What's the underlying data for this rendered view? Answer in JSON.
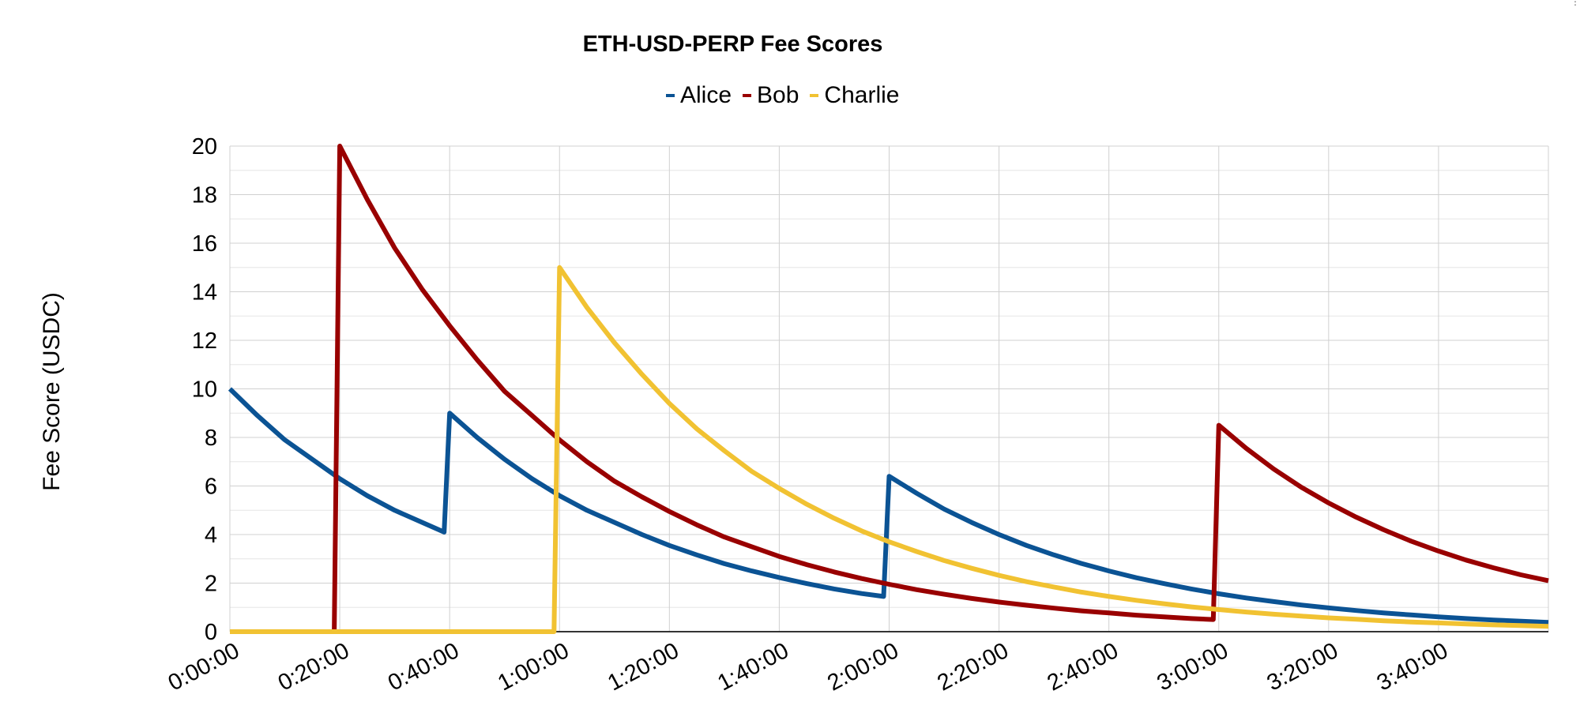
{
  "chart_data": {
    "type": "line",
    "title": "ETH-USD-PERP Fee Scores",
    "xlabel": "",
    "ylabel": "Fee Score (USDC)",
    "x_unit": "minutes",
    "xlim": [
      0,
      240
    ],
    "ylim": [
      0,
      20
    ],
    "x_ticks": [
      "0:00:00",
      "0:20:00",
      "0:40:00",
      "1:00:00",
      "1:20:00",
      "1:40:00",
      "2:00:00",
      "2:20:00",
      "2:40:00",
      "3:00:00",
      "3:20:00",
      "3:40:00"
    ],
    "y_ticks": [
      "0",
      "2",
      "4",
      "6",
      "8",
      "10",
      "12",
      "14",
      "16",
      "18",
      "20"
    ],
    "grid": true,
    "legend_position": "top",
    "series": [
      {
        "name": "Alice",
        "color": "#0b5394",
        "points": [
          [
            0,
            10
          ],
          [
            5,
            8.9
          ],
          [
            10,
            7.9
          ],
          [
            15,
            7.1
          ],
          [
            20,
            6.3
          ],
          [
            25,
            5.6
          ],
          [
            30,
            5.0
          ],
          [
            35,
            4.5
          ],
          [
            39,
            4.1
          ],
          [
            40,
            9.0
          ],
          [
            45,
            8.0
          ],
          [
            50,
            7.1
          ],
          [
            55,
            6.3
          ],
          [
            60,
            5.6
          ],
          [
            65,
            5.0
          ],
          [
            70,
            4.5
          ],
          [
            75,
            4.0
          ],
          [
            80,
            3.55
          ],
          [
            85,
            3.16
          ],
          [
            90,
            2.8
          ],
          [
            95,
            2.5
          ],
          [
            100,
            2.23
          ],
          [
            105,
            1.98
          ],
          [
            110,
            1.76
          ],
          [
            115,
            1.57
          ],
          [
            119,
            1.45
          ],
          [
            120,
            6.4
          ],
          [
            125,
            5.7
          ],
          [
            130,
            5.05
          ],
          [
            135,
            4.5
          ],
          [
            140,
            4.0
          ],
          [
            145,
            3.55
          ],
          [
            150,
            3.16
          ],
          [
            155,
            2.81
          ],
          [
            160,
            2.5
          ],
          [
            165,
            2.22
          ],
          [
            170,
            1.98
          ],
          [
            175,
            1.76
          ],
          [
            180,
            1.56
          ],
          [
            185,
            1.39
          ],
          [
            190,
            1.24
          ],
          [
            195,
            1.1
          ],
          [
            200,
            0.98
          ],
          [
            205,
            0.87
          ],
          [
            210,
            0.77
          ],
          [
            215,
            0.69
          ],
          [
            220,
            0.61
          ],
          [
            225,
            0.54
          ],
          [
            230,
            0.48
          ],
          [
            235,
            0.43
          ],
          [
            240,
            0.38
          ]
        ]
      },
      {
        "name": "Bob",
        "color": "#990000",
        "points": [
          [
            0,
            0
          ],
          [
            19,
            0
          ],
          [
            20,
            20
          ],
          [
            25,
            17.8
          ],
          [
            30,
            15.8
          ],
          [
            35,
            14.1
          ],
          [
            40,
            12.6
          ],
          [
            45,
            11.2
          ],
          [
            50,
            9.9
          ],
          [
            55,
            8.9
          ],
          [
            60,
            7.9
          ],
          [
            65,
            7.0
          ],
          [
            70,
            6.2
          ],
          [
            75,
            5.55
          ],
          [
            80,
            4.95
          ],
          [
            85,
            4.4
          ],
          [
            90,
            3.9
          ],
          [
            95,
            3.5
          ],
          [
            100,
            3.1
          ],
          [
            105,
            2.76
          ],
          [
            110,
            2.46
          ],
          [
            115,
            2.19
          ],
          [
            120,
            1.95
          ],
          [
            125,
            1.73
          ],
          [
            130,
            1.54
          ],
          [
            135,
            1.37
          ],
          [
            140,
            1.22
          ],
          [
            145,
            1.09
          ],
          [
            150,
            0.97
          ],
          [
            155,
            0.86
          ],
          [
            160,
            0.77
          ],
          [
            165,
            0.68
          ],
          [
            170,
            0.61
          ],
          [
            175,
            0.54
          ],
          [
            179,
            0.5
          ],
          [
            180,
            8.5
          ],
          [
            185,
            7.55
          ],
          [
            190,
            6.7
          ],
          [
            195,
            5.95
          ],
          [
            200,
            5.3
          ],
          [
            205,
            4.72
          ],
          [
            210,
            4.2
          ],
          [
            215,
            3.73
          ],
          [
            220,
            3.32
          ],
          [
            225,
            2.95
          ],
          [
            230,
            2.63
          ],
          [
            235,
            2.34
          ],
          [
            240,
            2.1
          ]
        ]
      },
      {
        "name": "Charlie",
        "color": "#f1c232",
        "points": [
          [
            0,
            0
          ],
          [
            59,
            0
          ],
          [
            60,
            15
          ],
          [
            65,
            13.35
          ],
          [
            70,
            11.9
          ],
          [
            75,
            10.6
          ],
          [
            80,
            9.4
          ],
          [
            85,
            8.35
          ],
          [
            90,
            7.45
          ],
          [
            95,
            6.6
          ],
          [
            100,
            5.9
          ],
          [
            105,
            5.25
          ],
          [
            110,
            4.67
          ],
          [
            115,
            4.15
          ],
          [
            120,
            3.7
          ],
          [
            125,
            3.3
          ],
          [
            130,
            2.93
          ],
          [
            135,
            2.61
          ],
          [
            140,
            2.32
          ],
          [
            145,
            2.06
          ],
          [
            150,
            1.84
          ],
          [
            155,
            1.63
          ],
          [
            160,
            1.45
          ],
          [
            165,
            1.29
          ],
          [
            170,
            1.15
          ],
          [
            175,
            1.02
          ],
          [
            180,
            0.91
          ],
          [
            185,
            0.81
          ],
          [
            190,
            0.72
          ],
          [
            195,
            0.64
          ],
          [
            200,
            0.57
          ],
          [
            205,
            0.51
          ],
          [
            210,
            0.45
          ],
          [
            215,
            0.4
          ],
          [
            220,
            0.36
          ],
          [
            225,
            0.32
          ],
          [
            230,
            0.28
          ],
          [
            235,
            0.25
          ],
          [
            240,
            0.22
          ]
        ]
      }
    ]
  }
}
